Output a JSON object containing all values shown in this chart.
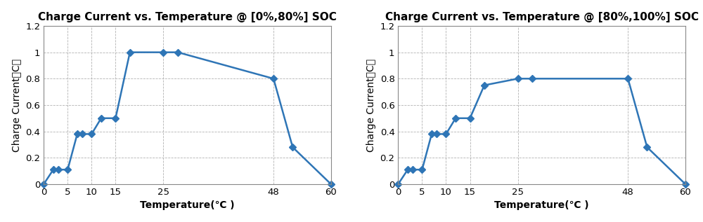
{
  "chart1": {
    "title": "Charge Current vs. Temperature @ [0%,80%] SOC",
    "x": [
      0,
      2,
      3,
      5,
      7,
      8,
      10,
      12,
      15,
      18,
      25,
      28,
      48,
      52,
      60
    ],
    "y": [
      0,
      0.11,
      0.11,
      0.11,
      0.38,
      0.38,
      0.38,
      0.5,
      0.5,
      1.0,
      1.0,
      1.0,
      0.8,
      0.28,
      0.0
    ],
    "xlabel": "Temperature(℃ )",
    "ylabel": "Charge Current（C）",
    "xlim": [
      0,
      60
    ],
    "ylim": [
      0,
      1.2
    ],
    "xticks": [
      0,
      5,
      10,
      15,
      25,
      48,
      60
    ],
    "yticks": [
      0,
      0.2,
      0.4,
      0.6,
      0.8,
      1,
      1.2
    ],
    "yticklabels": [
      "0",
      "0.2",
      "0.4",
      "0.6",
      "0.8",
      "1",
      "1.2"
    ]
  },
  "chart2": {
    "title": "Charge Current vs. Temperature @ [80%,100%] SOC",
    "x": [
      0,
      2,
      3,
      5,
      7,
      8,
      10,
      12,
      15,
      18,
      25,
      28,
      48,
      52,
      60
    ],
    "y": [
      0,
      0.11,
      0.11,
      0.11,
      0.38,
      0.38,
      0.38,
      0.5,
      0.5,
      0.75,
      0.8,
      0.8,
      0.8,
      0.28,
      0.0
    ],
    "xlabel": "Temperature(℃ )",
    "ylabel": "Charge Current（C）",
    "xlim": [
      0,
      60
    ],
    "ylim": [
      0,
      1.2
    ],
    "xticks": [
      0,
      5,
      10,
      15,
      25,
      48,
      60
    ],
    "yticks": [
      0,
      0.2,
      0.4,
      0.6,
      0.8,
      1,
      1.2
    ],
    "yticklabels": [
      "0",
      "0.2",
      "0.4",
      "0.6",
      "0.8",
      "1",
      "1.2"
    ]
  },
  "line_color": "#2e75b6",
  "marker": "D",
  "marker_size": 5,
  "line_width": 1.8,
  "title_fontsize": 11,
  "label_fontsize": 10,
  "tick_fontsize": 9.5,
  "background_color": "#ffffff",
  "grid_color": "#aaaaaa",
  "grid_linestyle": "--",
  "figsize": [
    10.0,
    3.17
  ],
  "dpi": 100
}
